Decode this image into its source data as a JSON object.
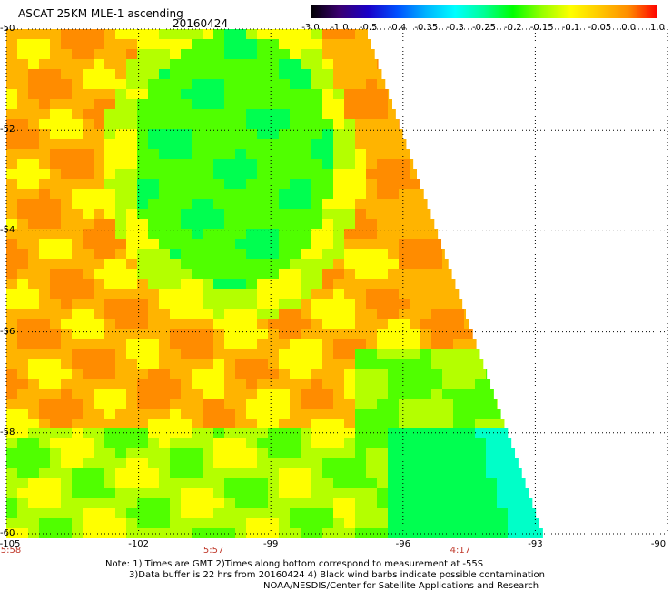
{
  "title": "ASCAT 25KM MLE-1 ascending",
  "date": "20160424",
  "colorbar": {
    "labels": [
      "-3.0",
      "-1.0",
      "-0.5",
      "-0.4",
      "-0.35",
      "-0.3",
      "-0.25",
      "-0.2",
      "-0.15",
      "-0.1",
      "-0.05",
      "0.0",
      "1.0"
    ],
    "colors": [
      "#000000",
      "#3a0070",
      "#1a00c8",
      "#0050ff",
      "#00b4ff",
      "#00ffff",
      "#00ff96",
      "#00ff00",
      "#96ff00",
      "#ffff00",
      "#ffc800",
      "#ff8c00",
      "#ff0000"
    ]
  },
  "axes": {
    "y_labels": [
      "-50",
      "-52",
      "-54",
      "-56",
      "-58",
      "-60"
    ],
    "x_labels": [
      "-105",
      "-102",
      "-99",
      "-96",
      "-93",
      "-90"
    ],
    "lat_range": [
      -60,
      -50
    ],
    "lon_range": [
      -105,
      -90
    ],
    "time_labels": [
      {
        "lon": -105,
        "text": "5:58"
      },
      {
        "lon": -100.3,
        "text": "5:57"
      },
      {
        "lon": -94.7,
        "text": "4:17"
      }
    ]
  },
  "notes": [
    "Note: 1) Times are GMT 2)Times along bottom correspond to measurement at -55S",
    "3)Data buffer is 22 hrs from 20160424 4) Black wind barbs indicate possible contamination",
    "NOAA/NESDIS/Center for Satellite Applications and Research"
  ],
  "colors": {
    "orange": "#ff8c00",
    "light_orange": "#ffb400",
    "yellow": "#ffff00",
    "yellow_green": "#b4ff00",
    "green": "#50ff00",
    "bright_green": "#00ff50",
    "cyan": "#00ffc8"
  }
}
